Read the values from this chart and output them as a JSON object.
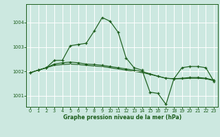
{
  "background_color": "#cce8e0",
  "grid_color": "#ffffff",
  "line_color": "#1a5c1a",
  "xlabel": "Graphe pression niveau de la mer (hPa)",
  "xlim": [
    -0.5,
    23.5
  ],
  "ylim": [
    1000.55,
    1004.75
  ],
  "yticks": [
    1001,
    1002,
    1003,
    1004
  ],
  "xticks": [
    0,
    1,
    2,
    3,
    4,
    5,
    6,
    7,
    8,
    9,
    10,
    11,
    12,
    13,
    14,
    15,
    16,
    17,
    18,
    19,
    20,
    21,
    22,
    23
  ],
  "series1": [
    1001.95,
    1002.05,
    1002.15,
    1002.45,
    1002.45,
    1003.05,
    1003.1,
    1003.15,
    1003.65,
    1004.2,
    1004.05,
    1003.6,
    1002.55,
    1002.15,
    1002.05,
    1001.15,
    1001.1,
    1000.65,
    1001.7,
    1002.15,
    1002.2,
    1002.2,
    1002.15,
    1001.6
  ],
  "series2": [
    1001.95,
    1002.05,
    1002.15,
    1002.3,
    1002.35,
    1002.38,
    1002.35,
    1002.3,
    1002.28,
    1002.25,
    1002.2,
    1002.15,
    1002.1,
    1002.05,
    1002.0,
    1001.9,
    1001.8,
    1001.72,
    1001.7,
    1001.72,
    1001.75,
    1001.75,
    1001.72,
    1001.65
  ],
  "series3": [
    1001.95,
    1002.05,
    1002.15,
    1002.25,
    1002.28,
    1002.3,
    1002.28,
    1002.25,
    1002.22,
    1002.2,
    1002.15,
    1002.1,
    1002.05,
    1002.0,
    1001.95,
    1001.88,
    1001.8,
    1001.72,
    1001.7,
    1001.7,
    1001.72,
    1001.72,
    1001.7,
    1001.62
  ],
  "figsize": [
    3.2,
    2.0
  ],
  "dpi": 100
}
